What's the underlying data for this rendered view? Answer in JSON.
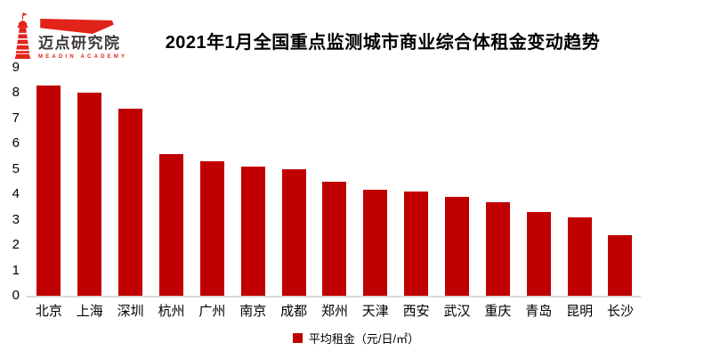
{
  "logo": {
    "name": "迈点研究院",
    "subtitle": "MEADIN ACADEMY",
    "red": "#e2231a",
    "text_color": "#3f3a39"
  },
  "title": "2021年1月全国重点监测城市商业综合体租金变动趋势",
  "chart_data": {
    "type": "bar",
    "title": "2021年1月全国重点监测城市商业综合体租金变动趋势",
    "categories": [
      "北京",
      "上海",
      "深圳",
      "杭州",
      "广州",
      "南京",
      "成都",
      "郑州",
      "天津",
      "西安",
      "武汉",
      "重庆",
      "青岛",
      "昆明",
      "长沙"
    ],
    "values": [
      8.3,
      8.0,
      7.4,
      5.6,
      5.3,
      5.1,
      5.0,
      4.5,
      4.2,
      4.1,
      3.9,
      3.7,
      3.3,
      3.1,
      2.4
    ],
    "series_name": "平均租金（元/日/㎡）",
    "xlabel": "",
    "ylabel": "",
    "ylim": [
      0,
      9
    ],
    "ytick_step": 1,
    "grid": false,
    "legend_position": "bottom",
    "bar_color": "#c00000",
    "axis_line_color": "#d9d9d9"
  },
  "legend": {
    "label": "平均租金（元/日/㎡）",
    "swatch_color": "#c00000"
  }
}
